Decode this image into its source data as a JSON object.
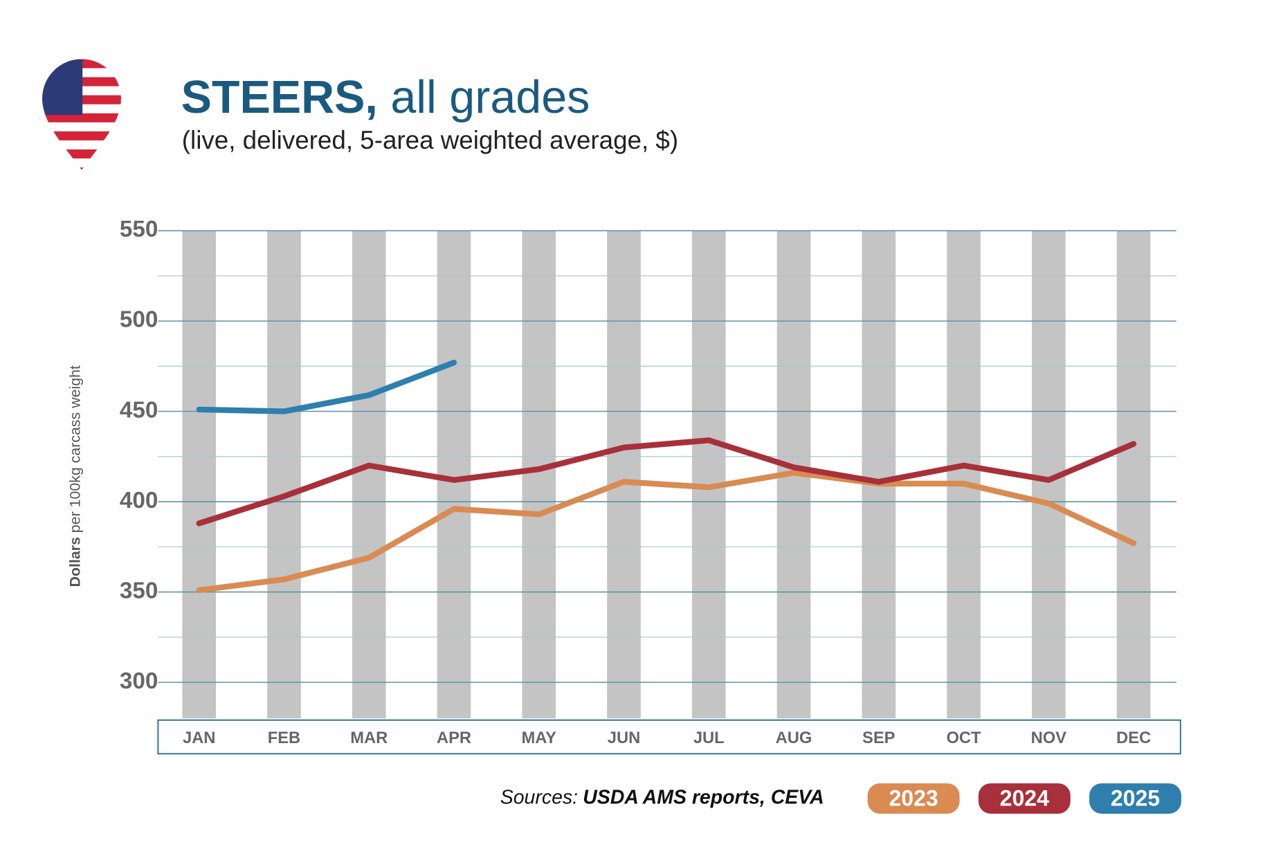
{
  "chart_data": {
    "type": "line",
    "title_bold": "STEERS,",
    "title_rest": " all grades",
    "subtitle": "(live, delivered, 5-area weighted average, $)",
    "y_label_bold": "Dollars",
    "y_label_rest": " per 100kg carcass weight",
    "source_label": "Sources:",
    "source_text": "USDA AMS reports, CEVA",
    "categories": [
      "JAN",
      "FEB",
      "MAR",
      "APR",
      "MAY",
      "JUN",
      "JUL",
      "AUG",
      "SEP",
      "OCT",
      "NOV",
      "DEC"
    ],
    "series": [
      {
        "name": "2023",
        "color": "#d98b52",
        "values": [
          351,
          357,
          369,
          396,
          393,
          411,
          408,
          416,
          410,
          410,
          399,
          377
        ]
      },
      {
        "name": "2024",
        "color": "#a8303a",
        "values": [
          388,
          403,
          420,
          412,
          418,
          430,
          434,
          419,
          411,
          420,
          412,
          432
        ]
      },
      {
        "name": "2025",
        "color": "#2e7fae",
        "values": [
          451,
          450,
          459,
          477,
          null,
          null,
          null,
          null,
          null,
          null,
          null,
          null
        ]
      }
    ],
    "ylim": [
      280,
      550
    ],
    "yticks": [
      300,
      350,
      400,
      450,
      500,
      550
    ],
    "minor_yticks": [
      325,
      375,
      425,
      475,
      525
    ],
    "grid": true
  }
}
